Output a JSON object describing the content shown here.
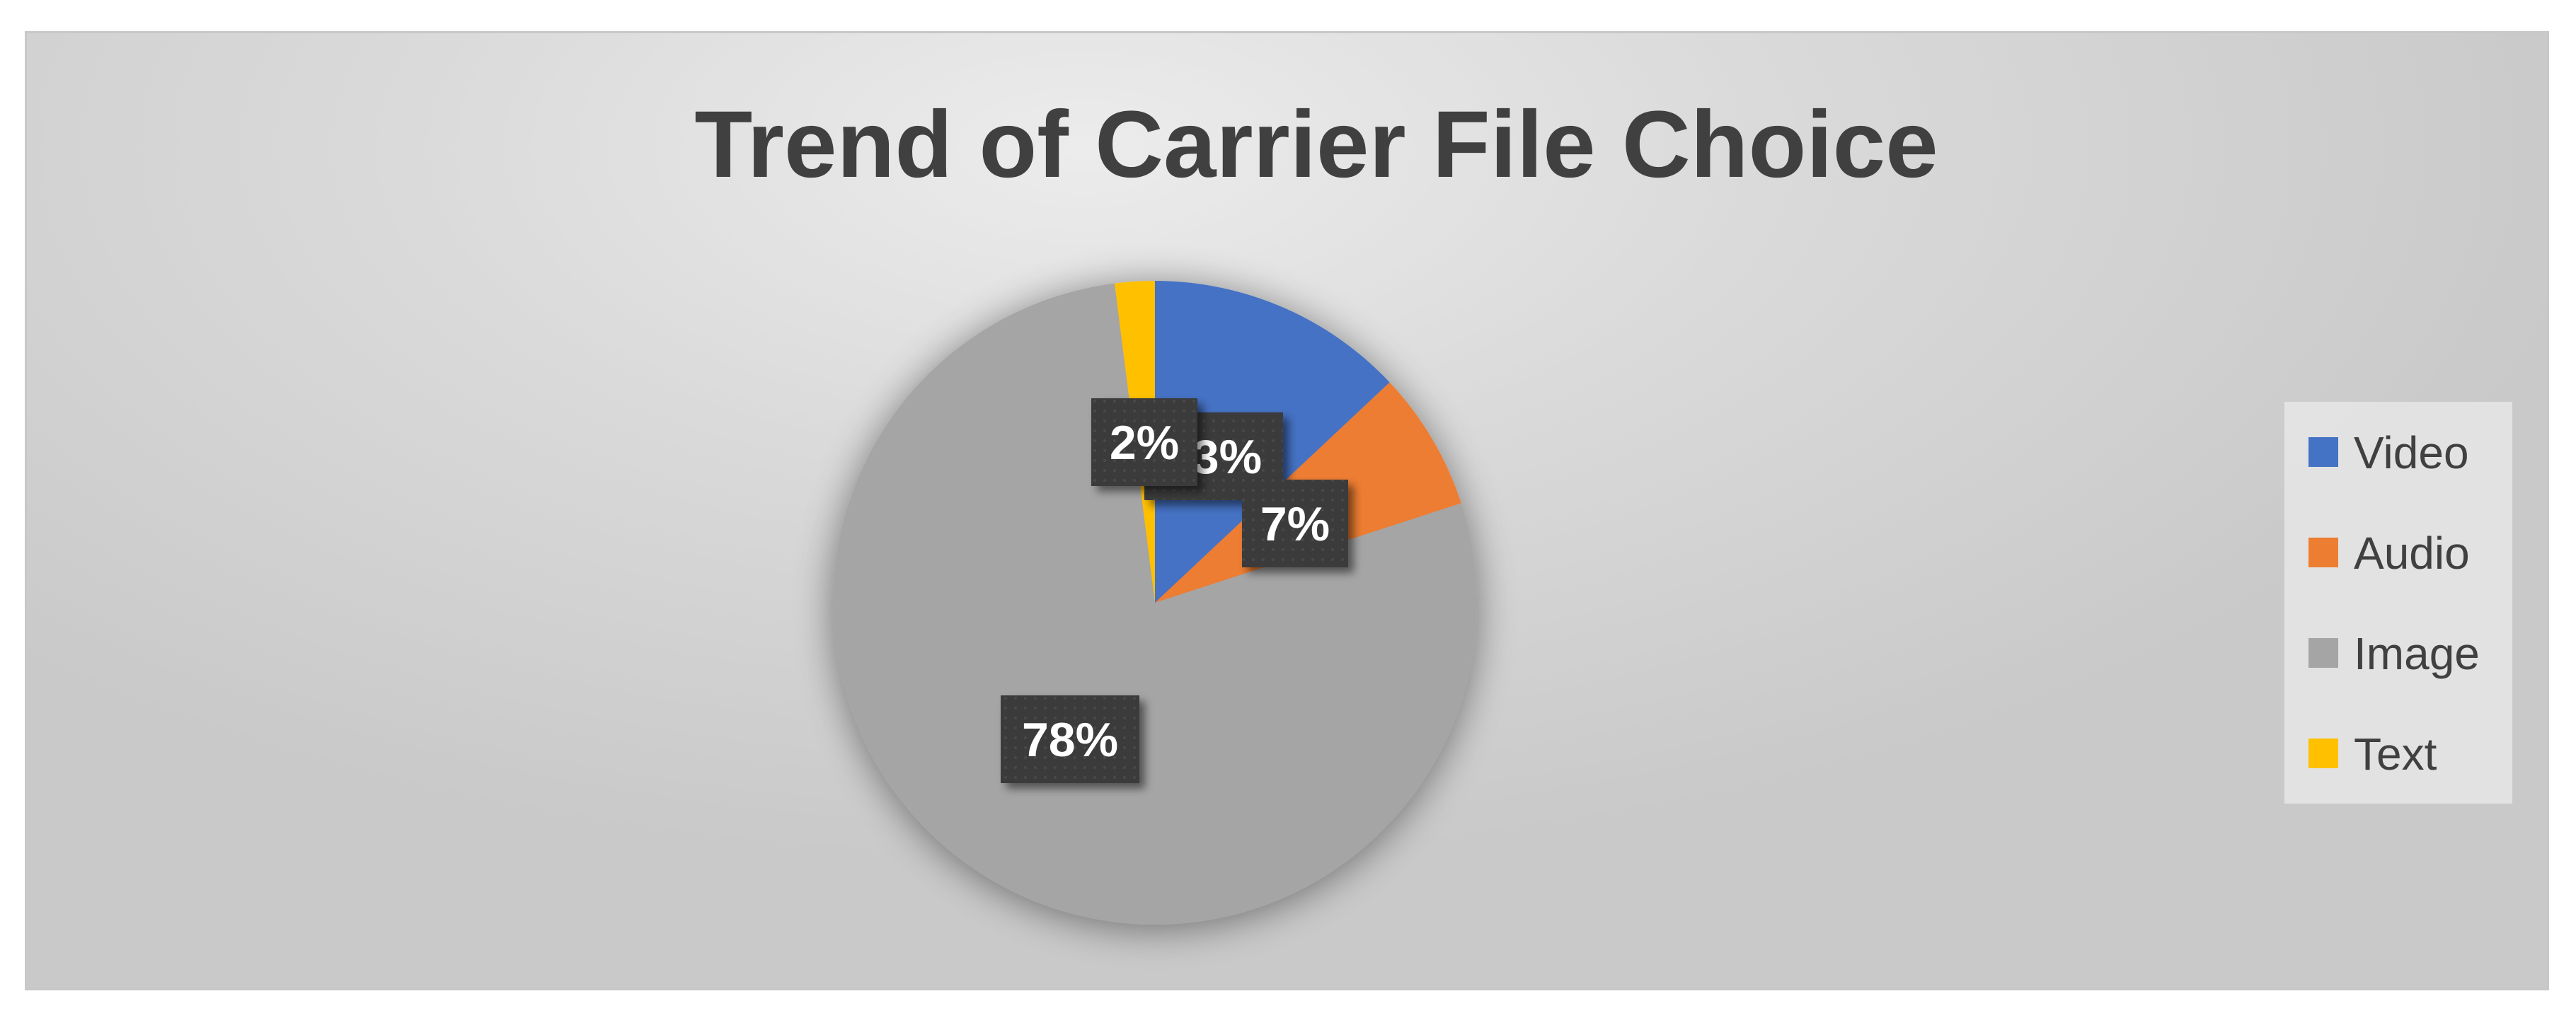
{
  "chart_data": {
    "type": "pie",
    "title": "Trend of Carrier File Choice",
    "series": [
      {
        "name": "Video",
        "value": 13,
        "label": "13%",
        "color": "#4472c4"
      },
      {
        "name": "Audio",
        "value": 7,
        "label": "7%",
        "color": "#ed7d31"
      },
      {
        "name": "Image",
        "value": 78,
        "label": "78%",
        "color": "#a5a5a5"
      },
      {
        "name": "Text",
        "value": 2,
        "label": "2%",
        "color": "#ffc000"
      }
    ],
    "start_angle_deg": 0,
    "direction": "clockwise",
    "legend_position": "right",
    "label_box_color": "#3b3b3b",
    "label_text_color": "#ffffff"
  }
}
